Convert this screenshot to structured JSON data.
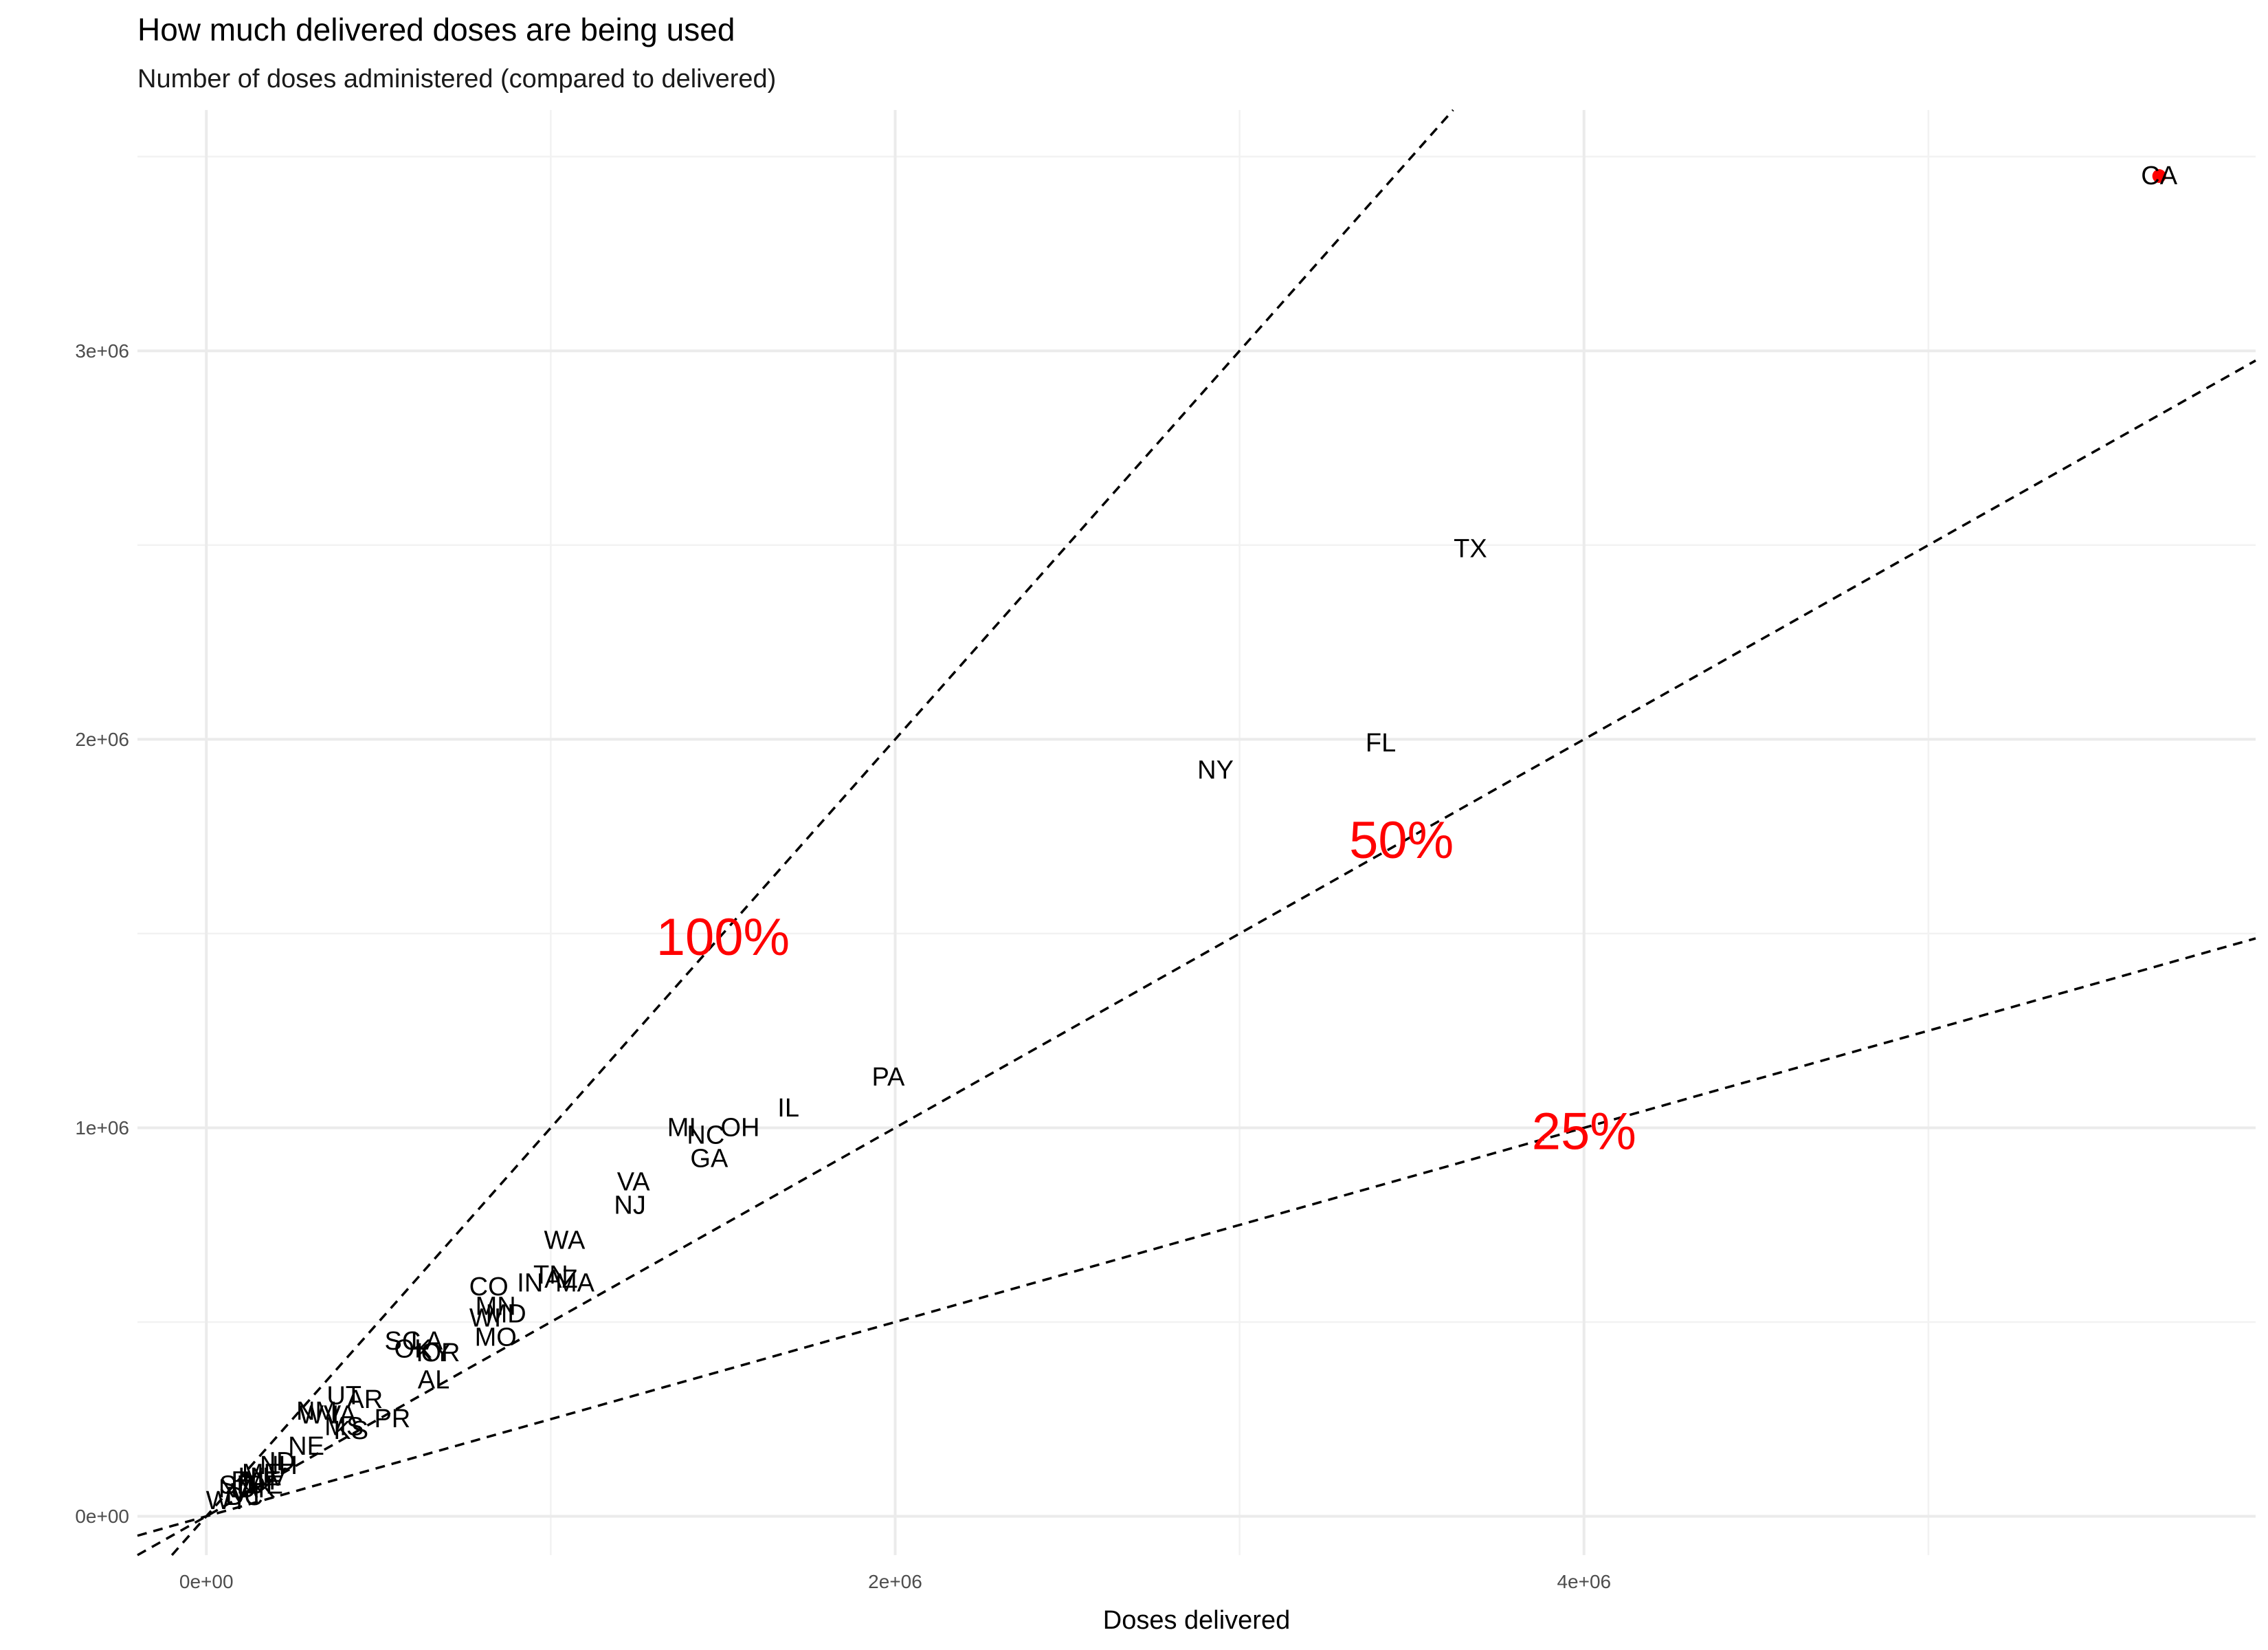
{
  "chart_data": {
    "type": "scatter",
    "title": "How much delivered doses are being used",
    "subtitle": "Number of doses administered (compared to delivered)",
    "xlabel": "Doses delivered",
    "ylabel": "",
    "xlim": [
      -200000,
      5950000
    ],
    "ylim": [
      -100000,
      3620000
    ],
    "x_ticks": [
      {
        "value": 0,
        "label": "0e+00"
      },
      {
        "value": 2000000,
        "label": "2e+06"
      },
      {
        "value": 4000000,
        "label": "4e+06"
      }
    ],
    "y_ticks": [
      {
        "value": 0,
        "label": "0e+00"
      },
      {
        "value": 1000000,
        "label": "1e+06"
      },
      {
        "value": 2000000,
        "label": "2e+06"
      },
      {
        "value": 3000000,
        "label": "3e+06"
      }
    ],
    "minor_x": [
      1000000,
      3000000,
      5000000
    ],
    "minor_y": [
      500000,
      1500000,
      2500000,
      3500000
    ],
    "grid": true,
    "reference_lines": [
      {
        "ratio": 1.0,
        "label": "100%",
        "label_x": 1500000,
        "label_y": 1490000
      },
      {
        "ratio": 0.5,
        "label": "50%",
        "label_x": 3470000,
        "label_y": 1740000
      },
      {
        "ratio": 0.25,
        "label": "25%",
        "label_x": 4000000,
        "label_y": 990000
      }
    ],
    "highlight_color": "#ff0000",
    "highlight_label": "CA",
    "points": [
      {
        "label": "CA",
        "x": 5670000,
        "y": 3450000
      },
      {
        "label": "TX",
        "x": 3670000,
        "y": 2490000
      },
      {
        "label": "FL",
        "x": 3410000,
        "y": 1990000
      },
      {
        "label": "NY",
        "x": 2930000,
        "y": 1920000
      },
      {
        "label": "PA",
        "x": 1980000,
        "y": 1130000
      },
      {
        "label": "IL",
        "x": 1690000,
        "y": 1050000
      },
      {
        "label": "OH",
        "x": 1550000,
        "y": 1000000
      },
      {
        "label": "MI",
        "x": 1380000,
        "y": 1000000
      },
      {
        "label": "NC",
        "x": 1450000,
        "y": 980000
      },
      {
        "label": "GA",
        "x": 1460000,
        "y": 920000
      },
      {
        "label": "VA",
        "x": 1240000,
        "y": 860000
      },
      {
        "label": "NJ",
        "x": 1230000,
        "y": 800000
      },
      {
        "label": "WA",
        "x": 1040000,
        "y": 710000
      },
      {
        "label": "TN",
        "x": 1000000,
        "y": 620000
      },
      {
        "label": "AZ",
        "x": 1030000,
        "y": 610000
      },
      {
        "label": "MA",
        "x": 1070000,
        "y": 600000
      },
      {
        "label": "IN",
        "x": 940000,
        "y": 600000
      },
      {
        "label": "CO",
        "x": 820000,
        "y": 590000
      },
      {
        "label": "MN",
        "x": 840000,
        "y": 540000
      },
      {
        "label": "WI",
        "x": 810000,
        "y": 510000
      },
      {
        "label": "MD",
        "x": 870000,
        "y": 520000
      },
      {
        "label": "MO",
        "x": 840000,
        "y": 460000
      },
      {
        "label": "SC",
        "x": 570000,
        "y": 450000
      },
      {
        "label": "LA",
        "x": 640000,
        "y": 450000
      },
      {
        "label": "OK",
        "x": 600000,
        "y": 430000
      },
      {
        "label": "KY",
        "x": 660000,
        "y": 420000
      },
      {
        "label": "OR",
        "x": 680000,
        "y": 420000
      },
      {
        "label": "AL",
        "x": 660000,
        "y": 350000
      },
      {
        "label": "UT",
        "x": 400000,
        "y": 310000
      },
      {
        "label": "AR",
        "x": 460000,
        "y": 300000
      },
      {
        "label": "NM",
        "x": 320000,
        "y": 270000
      },
      {
        "label": "IA",
        "x": 400000,
        "y": 260000
      },
      {
        "label": "PR",
        "x": 540000,
        "y": 250000
      },
      {
        "label": "WV",
        "x": 330000,
        "y": 260000
      },
      {
        "label": "MS",
        "x": 400000,
        "y": 230000
      },
      {
        "label": "KS",
        "x": 420000,
        "y": 220000
      },
      {
        "label": "NE",
        "x": 290000,
        "y": 180000
      },
      {
        "label": "ID",
        "x": 220000,
        "y": 140000
      },
      {
        "label": "NH",
        "x": 210000,
        "y": 130000
      },
      {
        "label": "ME",
        "x": 160000,
        "y": 110000
      },
      {
        "label": "NV",
        "x": 180000,
        "y": 100000
      },
      {
        "label": "HI",
        "x": 130000,
        "y": 100000
      },
      {
        "label": "MT",
        "x": 160000,
        "y": 90000
      },
      {
        "label": "RI",
        "x": 110000,
        "y": 90000
      },
      {
        "label": "DE",
        "x": 170000,
        "y": 80000
      },
      {
        "label": "SD",
        "x": 90000,
        "y": 80000
      },
      {
        "label": "ND",
        "x": 90000,
        "y": 70000
      },
      {
        "label": "AK",
        "x": 150000,
        "y": 70000
      },
      {
        "label": "VT",
        "x": 120000,
        "y": 60000
      },
      {
        "label": "DC",
        "x": 110000,
        "y": 50000
      },
      {
        "label": "WY",
        "x": 60000,
        "y": 40000
      }
    ]
  }
}
